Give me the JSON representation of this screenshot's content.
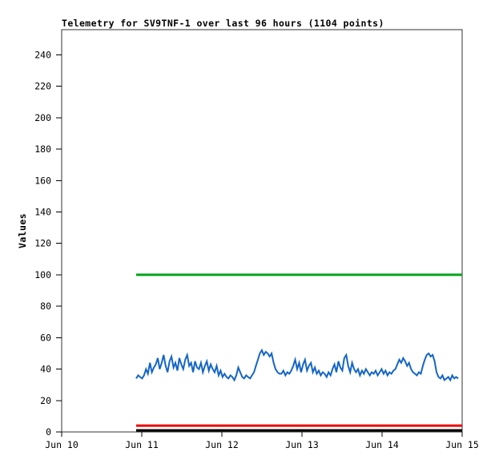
{
  "chart_data": {
    "type": "line",
    "title": "Telemetry for SV9TNF-1 over last 96 hours (1104 points)",
    "ylabel": "Values",
    "xlabel": "",
    "points_shown": 1104,
    "x_tick_labels": [
      "Jun 10",
      "Jun 11",
      "Jun 12",
      "Jun 13",
      "Jun 14",
      "Jun 15"
    ],
    "x_tick_days": [
      0,
      1,
      2,
      3,
      4,
      5
    ],
    "y_ticks": [
      0,
      20,
      40,
      60,
      80,
      100,
      120,
      140,
      160,
      180,
      200,
      220,
      240
    ],
    "xlim_days": [
      0,
      5
    ],
    "ylim": [
      0,
      256
    ],
    "grid": false,
    "legend_position": "none",
    "axis_color": "#333333",
    "series": [
      {
        "name": "green-constant-line",
        "type": "constant",
        "color": "#00a41c",
        "value": 100,
        "x_start_day": 0.93,
        "x_end_day": 5.0,
        "width": 3
      },
      {
        "name": "red-constant-line",
        "type": "constant",
        "color": "#ee0000",
        "value": 4,
        "x_start_day": 0.93,
        "x_end_day": 5.0,
        "width": 3
      },
      {
        "name": "black-constant-line",
        "type": "constant",
        "color": "#000000",
        "value": 1,
        "x_start_day": 0.93,
        "x_end_day": 5.0,
        "width": 3
      },
      {
        "name": "blue-telemetry-line",
        "type": "noisy-line",
        "color": "#1565c8",
        "x_start_day": 0.93,
        "x_end_day": 4.95,
        "width": 2,
        "values": [
          34,
          36,
          35,
          34,
          36,
          40,
          37,
          44,
          38,
          41,
          43,
          47,
          40,
          44,
          49,
          42,
          38,
          45,
          48,
          41,
          44,
          39,
          47,
          43,
          40,
          46,
          49,
          42,
          44,
          38,
          45,
          41,
          40,
          44,
          38,
          42,
          45,
          39,
          43,
          40,
          38,
          42,
          36,
          39,
          35,
          37,
          35,
          34,
          36,
          35,
          33,
          36,
          41,
          38,
          35,
          34,
          36,
          35,
          34,
          36,
          38,
          42,
          46,
          50,
          52,
          49,
          51,
          50,
          48,
          50,
          44,
          40,
          38,
          37,
          37,
          39,
          36,
          38,
          37,
          39,
          42,
          46,
          40,
          44,
          38,
          43,
          46,
          39,
          42,
          44,
          38,
          41,
          37,
          39,
          36,
          38,
          37,
          35,
          38,
          36,
          40,
          43,
          38,
          45,
          41,
          39,
          47,
          49,
          42,
          38,
          44,
          40,
          38,
          40,
          36,
          39,
          37,
          40,
          38,
          36,
          38,
          37,
          39,
          36,
          38,
          40,
          37,
          39,
          36,
          38,
          37,
          39,
          40,
          43,
          46,
          44,
          47,
          45,
          42,
          44,
          40,
          38,
          37,
          36,
          38,
          37,
          42,
          46,
          49,
          50,
          48,
          49,
          45,
          38,
          35,
          34,
          36,
          33,
          34,
          35,
          33,
          36,
          34,
          35,
          34
        ]
      }
    ]
  }
}
